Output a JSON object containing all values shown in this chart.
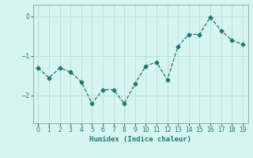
{
  "x": [
    0,
    1,
    2,
    3,
    4,
    5,
    6,
    7,
    8,
    9,
    10,
    11,
    12,
    13,
    14,
    15,
    16,
    17,
    18,
    19
  ],
  "y": [
    -1.3,
    -1.55,
    -1.3,
    -1.4,
    -1.65,
    -2.2,
    -1.85,
    -1.85,
    -2.2,
    -1.7,
    -1.25,
    -1.15,
    -1.6,
    -0.75,
    -0.45,
    -0.45,
    -0.02,
    -0.35,
    -0.6,
    -0.7
  ],
  "line_color": "#1a7a6e",
  "marker": "D",
  "marker_size": 2.5,
  "background_color": "#d6f5f0",
  "grid_color": "#b8e0db",
  "xlabel": "Humidex (Indice chaleur)",
  "ylim": [
    -2.7,
    0.3
  ],
  "xlim": [
    -0.5,
    19.5
  ],
  "yticks": [
    0,
    -1,
    -2
  ],
  "xticks": [
    0,
    1,
    2,
    3,
    4,
    5,
    6,
    7,
    8,
    9,
    10,
    11,
    12,
    13,
    14,
    15,
    16,
    17,
    18,
    19
  ]
}
